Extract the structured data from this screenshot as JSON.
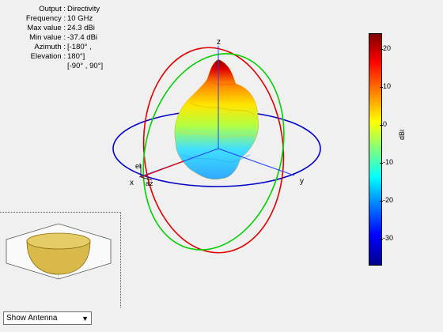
{
  "info": {
    "output_label": "Output :",
    "output_value": "Directivity",
    "frequency_label": "Frequency :",
    "frequency_value": "10 GHz",
    "max_label": "Max value :",
    "max_value": "24.3 dBi",
    "min_label": "Min value :",
    "min_value": "-37.4 dBi",
    "azimuth_label": "Azimuth :",
    "azimuth_value": "[-180° ,",
    "elevation_label": "Elevation :",
    "elevation_value": "180°]",
    "elevation_range": "[-90° , 90°]"
  },
  "axes": {
    "z_label": "z",
    "x_label": "x",
    "y_label": "y",
    "el_label": "el",
    "az_label": "az"
  },
  "colorbar": {
    "ticks": [
      "20",
      "10",
      "0",
      "-10",
      "-20",
      "-30"
    ],
    "unit": "dBi",
    "max": 24.3,
    "min": -37.4
  },
  "controls": {
    "show_antenna_label": "Show Antenna",
    "dropdown_arrow": "▼"
  },
  "colors": {
    "azimuth_circle": "#0000c8",
    "elevation_circle_xz": "#e00000",
    "elevation_circle_yz": "#00d000",
    "antenna_gold": "#d8b94a"
  }
}
